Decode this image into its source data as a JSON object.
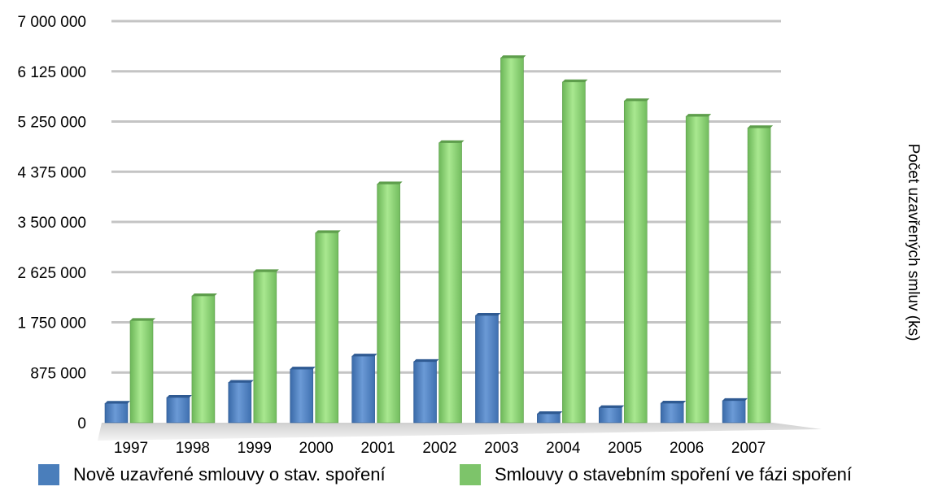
{
  "chart_data": {
    "type": "bar",
    "categories": [
      "1997",
      "1998",
      "1999",
      "2000",
      "2001",
      "2002",
      "2003",
      "2004",
      "2005",
      "2006",
      "2007"
    ],
    "series": [
      {
        "name": "Nově uzavřené smlouvy o stav. spoření",
        "color": "#4a7ebb",
        "values": [
          337000,
          440000,
          702000,
          933000,
          1160000,
          1065000,
          1870000,
          155000,
          260000,
          340000,
          385000
        ]
      },
      {
        "name": "Smlouvy o stavebním spoření ve fázi spoření",
        "color": "#7dc46a",
        "values": [
          1780000,
          2210000,
          2630000,
          3310000,
          4160000,
          4880000,
          6360000,
          5940000,
          5610000,
          5340000,
          5140000
        ]
      }
    ],
    "yticks": [
      "0",
      "875 000",
      "1 750 000",
      "2 625 000",
      "3 500 000",
      "4 375 000",
      "5 250 000",
      "6 125 000",
      "7 000 000"
    ],
    "ylim": [
      0,
      7000000
    ],
    "ylabel": "Počet uzavřených smluv (ks)",
    "xlabel": "",
    "grid": true,
    "legend_position": "bottom"
  }
}
